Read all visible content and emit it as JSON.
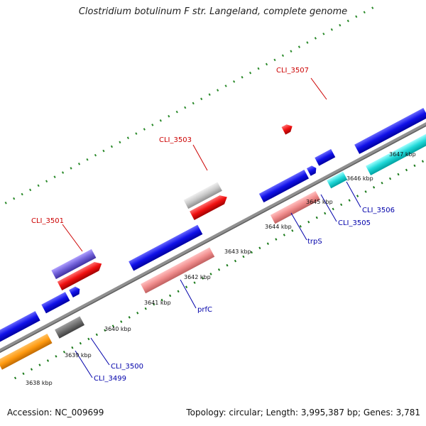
{
  "title": "Clostridium botulinum F str. Langeland, complete genome",
  "footer": {
    "accession": "Accession: NC_009699",
    "summary": "Topology: circular; Length: 3,995,387 bp; Genes: 3,781"
  },
  "colors": {
    "backbone": "#808080",
    "tick_inner": "#1a7a1a",
    "label_red": "#cc0000",
    "label_blue": "#0000aa"
  },
  "ticks": [
    "3638 kbp",
    "3639 kbp",
    "3640 kbp",
    "3641 kbp",
    "3642 kbp",
    "3643 kbp",
    "3644 kbp",
    "3645 kbp",
    "3646 kbp",
    "3647 kbp"
  ],
  "gene_labels": [
    {
      "text": "CLI_3507",
      "color": "red"
    },
    {
      "text": "CLI_3503",
      "color": "red"
    },
    {
      "text": "CLI_3501",
      "color": "red"
    },
    {
      "text": "CLI_3506",
      "color": "blue"
    },
    {
      "text": "CLI_3505",
      "color": "blue"
    },
    {
      "text": "trpS",
      "color": "blue"
    },
    {
      "text": "prfC",
      "color": "blue"
    },
    {
      "text": "CLI_3500",
      "color": "blue"
    },
    {
      "text": "CLI_3499",
      "color": "blue"
    }
  ]
}
